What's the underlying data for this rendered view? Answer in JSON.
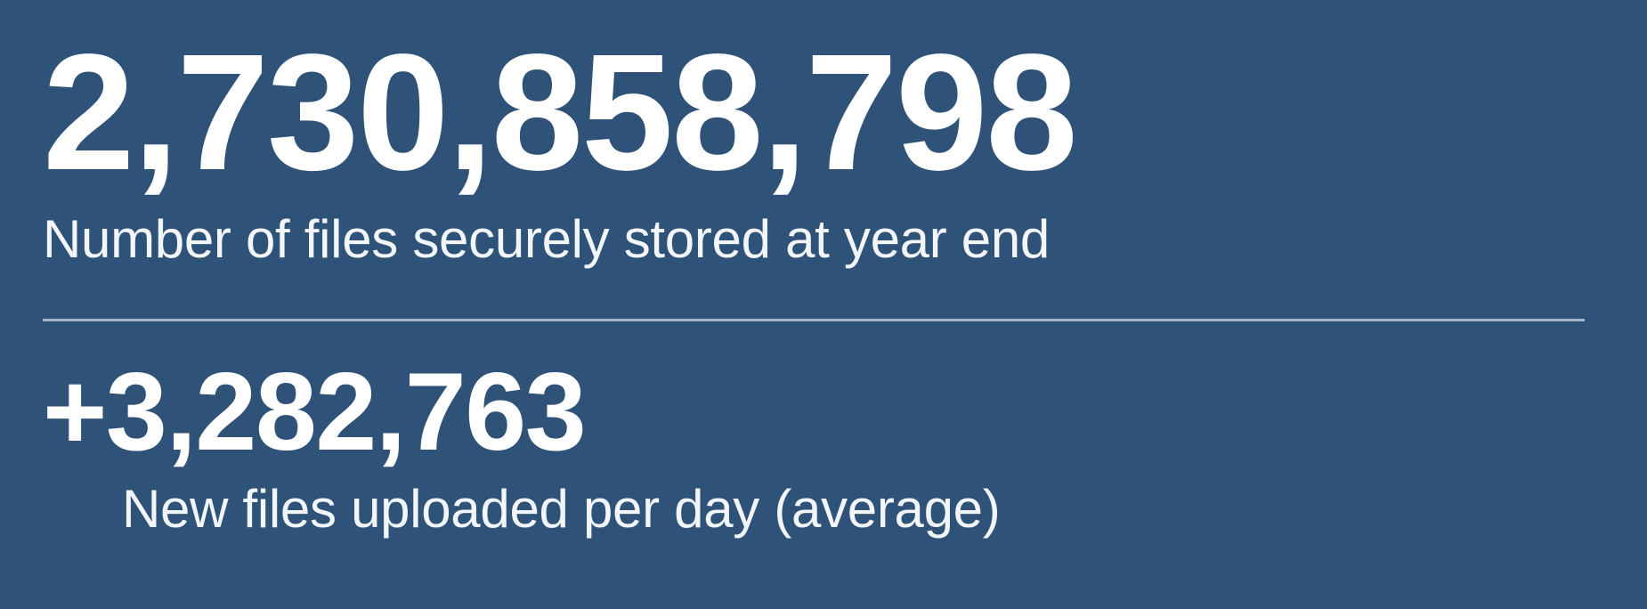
{
  "colors": {
    "background": "#2F5278",
    "text": "#FFFFFF",
    "caption": "#F2F5F9",
    "divider": "#A8B5C6"
  },
  "stats": {
    "primary": {
      "value": "2,730,858,798",
      "label": "Number of files securely stored at year end"
    },
    "secondary": {
      "value": "+3,282,763",
      "label": "New files uploaded per day (average)"
    }
  }
}
